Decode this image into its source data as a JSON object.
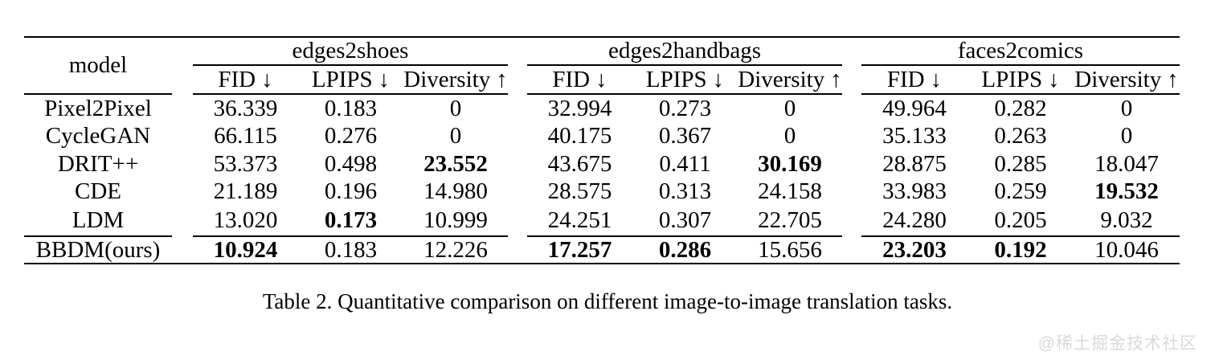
{
  "table": {
    "model_header": "model",
    "groups": [
      {
        "name": "edges2shoes",
        "columns": [
          {
            "label": "FID",
            "arrow": "↓"
          },
          {
            "label": "LPIPS",
            "arrow": "↓"
          },
          {
            "label": "Diversity",
            "arrow": "↑"
          }
        ]
      },
      {
        "name": "edges2handbags",
        "columns": [
          {
            "label": "FID",
            "arrow": "↓"
          },
          {
            "label": "LPIPS",
            "arrow": "↓"
          },
          {
            "label": "Diversity",
            "arrow": "↑"
          }
        ]
      },
      {
        "name": "faces2comics",
        "columns": [
          {
            "label": "FID",
            "arrow": "↓"
          },
          {
            "label": "LPIPS",
            "arrow": "↓"
          },
          {
            "label": "Diversity",
            "arrow": "↑"
          }
        ]
      }
    ],
    "rows": [
      {
        "model": "Pixel2Pixel",
        "cells": [
          "36.339",
          "0.183",
          "0",
          "32.994",
          "0.273",
          "0",
          "49.964",
          "0.282",
          "0"
        ],
        "bold": []
      },
      {
        "model": "CycleGAN",
        "cells": [
          "66.115",
          "0.276",
          "0",
          "40.175",
          "0.367",
          "0",
          "35.133",
          "0.263",
          "0"
        ],
        "bold": []
      },
      {
        "model": "DRIT++",
        "cells": [
          "53.373",
          "0.498",
          "23.552",
          "43.675",
          "0.411",
          "30.169",
          "28.875",
          "0.285",
          "18.047"
        ],
        "bold": [
          2,
          5
        ]
      },
      {
        "model": "CDE",
        "cells": [
          "21.189",
          "0.196",
          "14.980",
          "28.575",
          "0.313",
          "24.158",
          "33.983",
          "0.259",
          "19.532"
        ],
        "bold": [
          8
        ]
      },
      {
        "model": "LDM",
        "cells": [
          "13.020",
          "0.173",
          "10.999",
          "24.251",
          "0.307",
          "22.705",
          "24.280",
          "0.205",
          "9.032"
        ],
        "bold": [
          1
        ]
      },
      {
        "model": "BBDM(ours)",
        "cells": [
          "10.924",
          "0.183",
          "12.226",
          "17.257",
          "0.286",
          "15.656",
          "23.203",
          "0.192",
          "10.046"
        ],
        "bold": [
          0,
          3,
          4,
          6,
          7
        ]
      }
    ]
  },
  "caption": "Table 2. Quantitative comparison on different image-to-image translation tasks.",
  "watermark": "@稀土掘金技术社区",
  "colors": {
    "text": "#000000",
    "rule": "#000000",
    "watermark": "#d9d9d9",
    "background": "#ffffff"
  }
}
